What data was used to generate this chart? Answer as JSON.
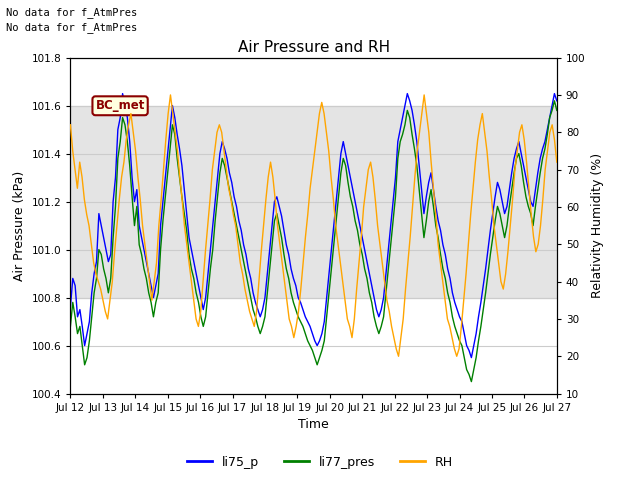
{
  "title": "Air Pressure and RH",
  "xlabel": "Time",
  "ylabel_left": "Air Pressure (kPa)",
  "ylabel_right": "Relativity Humidity (%)",
  "ylim_left": [
    100.4,
    101.8
  ],
  "ylim_right": [
    10,
    100
  ],
  "yticks_left": [
    100.4,
    100.6,
    100.8,
    101.0,
    101.2,
    101.4,
    101.6,
    101.8
  ],
  "yticks_right": [
    10,
    20,
    30,
    40,
    50,
    60,
    70,
    80,
    90,
    100
  ],
  "xtick_labels": [
    "Jul 12",
    "Jul 13",
    "Jul 14",
    "Jul 15",
    "Jul 16",
    "Jul 17",
    "Jul 18",
    "Jul 19",
    "Jul 20",
    "Jul 21",
    "Jul 22",
    "Jul 23",
    "Jul 24",
    "Jul 25",
    "Jul 26",
    "Jul 27"
  ],
  "annotation_text1": "No data for f_AtmPres",
  "annotation_text2": "No data for f_AtmPres",
  "bc_met_label": "BC_met",
  "legend_labels": [
    "li75_p",
    "li77_pres",
    "RH"
  ],
  "line_colors": [
    "blue",
    "green",
    "orange"
  ],
  "shade_ylim": [
    100.8,
    101.6
  ],
  "shade_color": "#d3d3d3",
  "background_color": "white",
  "title_fontsize": 11,
  "label_fontsize": 9,
  "tick_fontsize": 7.5,
  "legend_fontsize": 9,
  "li75_p": [
    100.76,
    100.88,
    100.85,
    100.72,
    100.75,
    100.68,
    100.6,
    100.65,
    100.7,
    100.82,
    100.9,
    100.95,
    101.15,
    101.1,
    101.05,
    101.0,
    100.95,
    100.98,
    101.2,
    101.3,
    101.5,
    101.55,
    101.65,
    101.6,
    101.55,
    101.45,
    101.3,
    101.2,
    101.25,
    101.1,
    101.05,
    101.0,
    100.95,
    100.9,
    100.85,
    100.8,
    100.85,
    100.9,
    101.1,
    101.2,
    101.3,
    101.4,
    101.5,
    101.6,
    101.55,
    101.48,
    101.42,
    101.35,
    101.25,
    101.15,
    101.05,
    101.0,
    100.95,
    100.9,
    100.85,
    100.8,
    100.75,
    100.8,
    100.9,
    101.0,
    101.1,
    101.2,
    101.3,
    101.4,
    101.45,
    101.42,
    101.38,
    101.32,
    101.28,
    101.22,
    101.18,
    101.12,
    101.08,
    101.02,
    100.98,
    100.92,
    100.88,
    100.82,
    100.78,
    100.75,
    100.72,
    100.75,
    100.8,
    100.9,
    101.0,
    101.1,
    101.2,
    101.22,
    101.18,
    101.14,
    101.08,
    101.02,
    100.98,
    100.92,
    100.88,
    100.85,
    100.8,
    100.78,
    100.75,
    100.72,
    100.7,
    100.68,
    100.65,
    100.62,
    100.6,
    100.62,
    100.65,
    100.7,
    100.8,
    100.9,
    101.0,
    101.1,
    101.2,
    101.3,
    101.4,
    101.45,
    101.4,
    101.35,
    101.3,
    101.25,
    101.2,
    101.15,
    101.1,
    101.05,
    101.0,
    100.95,
    100.9,
    100.85,
    100.8,
    100.75,
    100.72,
    100.75,
    100.8,
    100.9,
    101.0,
    101.1,
    101.2,
    101.3,
    101.45,
    101.5,
    101.55,
    101.6,
    101.65,
    101.62,
    101.58,
    101.52,
    101.45,
    101.35,
    101.25,
    101.15,
    101.22,
    101.28,
    101.32,
    101.25,
    101.18,
    101.12,
    101.08,
    101.02,
    100.98,
    100.92,
    100.88,
    100.82,
    100.78,
    100.75,
    100.72,
    100.7,
    100.65,
    100.6,
    100.58,
    100.55,
    100.6,
    100.65,
    100.72,
    100.78,
    100.85,
    100.92,
    101.0,
    101.08,
    101.15,
    101.22,
    101.28,
    101.25,
    101.2,
    101.15,
    101.18,
    101.25,
    101.32,
    101.38,
    101.42,
    101.45,
    101.4,
    101.35,
    101.3,
    101.25,
    101.2,
    101.18,
    101.25,
    101.32,
    101.38,
    101.42,
    101.45,
    101.5,
    101.55,
    101.6,
    101.65,
    101.62
  ],
  "li77_pres": [
    100.68,
    100.78,
    100.72,
    100.65,
    100.68,
    100.6,
    100.52,
    100.55,
    100.62,
    100.72,
    100.82,
    100.88,
    101.0,
    100.98,
    100.92,
    100.88,
    100.82,
    100.88,
    101.05,
    101.18,
    101.38,
    101.45,
    101.55,
    101.52,
    101.45,
    101.35,
    101.22,
    101.1,
    101.18,
    101.02,
    100.98,
    100.92,
    100.88,
    100.82,
    100.78,
    100.72,
    100.78,
    100.82,
    101.0,
    101.12,
    101.22,
    101.32,
    101.42,
    101.52,
    101.48,
    101.38,
    101.3,
    101.22,
    101.15,
    101.08,
    100.98,
    100.92,
    100.88,
    100.82,
    100.78,
    100.72,
    100.68,
    100.72,
    100.82,
    100.92,
    101.0,
    101.12,
    101.22,
    101.32,
    101.38,
    101.35,
    101.3,
    101.25,
    101.2,
    101.15,
    101.1,
    101.05,
    101.0,
    100.95,
    100.9,
    100.85,
    100.8,
    100.75,
    100.72,
    100.68,
    100.65,
    100.68,
    100.72,
    100.82,
    100.92,
    101.02,
    101.12,
    101.15,
    101.1,
    101.05,
    100.98,
    100.92,
    100.88,
    100.82,
    100.78,
    100.75,
    100.72,
    100.7,
    100.68,
    100.65,
    100.62,
    100.6,
    100.58,
    100.55,
    100.52,
    100.55,
    100.58,
    100.62,
    100.72,
    100.82,
    100.92,
    101.02,
    101.12,
    101.22,
    101.32,
    101.38,
    101.35,
    101.28,
    101.22,
    101.18,
    101.12,
    101.08,
    101.02,
    100.98,
    100.92,
    100.88,
    100.82,
    100.78,
    100.72,
    100.68,
    100.65,
    100.68,
    100.72,
    100.82,
    100.92,
    101.02,
    101.12,
    101.22,
    101.38,
    101.45,
    101.48,
    101.52,
    101.58,
    101.55,
    101.48,
    101.42,
    101.35,
    101.25,
    101.15,
    101.05,
    101.12,
    101.2,
    101.25,
    101.18,
    101.1,
    101.05,
    100.98,
    100.92,
    100.88,
    100.82,
    100.78,
    100.72,
    100.68,
    100.65,
    100.62,
    100.6,
    100.55,
    100.5,
    100.48,
    100.45,
    100.5,
    100.55,
    100.62,
    100.68,
    100.75,
    100.82,
    100.9,
    100.98,
    101.05,
    101.12,
    101.18,
    101.15,
    101.1,
    101.05,
    101.1,
    101.18,
    101.25,
    101.32,
    101.38,
    101.4,
    101.35,
    101.28,
    101.22,
    101.18,
    101.15,
    101.1,
    101.18,
    101.25,
    101.32,
    101.38,
    101.42,
    101.48,
    101.55,
    101.58,
    101.62,
    101.58
  ],
  "rh": [
    82,
    75,
    70,
    65,
    72,
    68,
    62,
    58,
    55,
    50,
    45,
    42,
    40,
    38,
    35,
    32,
    30,
    35,
    40,
    48,
    55,
    62,
    68,
    72,
    78,
    82,
    85,
    80,
    75,
    68,
    62,
    55,
    50,
    45,
    40,
    35,
    40,
    45,
    55,
    62,
    70,
    78,
    85,
    90,
    85,
    80,
    75,
    68,
    62,
    55,
    50,
    45,
    40,
    35,
    30,
    28,
    32,
    40,
    48,
    55,
    62,
    70,
    75,
    80,
    82,
    80,
    75,
    70,
    65,
    62,
    58,
    55,
    50,
    45,
    42,
    38,
    35,
    32,
    30,
    28,
    32,
    40,
    48,
    55,
    62,
    68,
    72,
    68,
    62,
    55,
    50,
    45,
    40,
    35,
    30,
    28,
    25,
    28,
    32,
    38,
    45,
    52,
    58,
    65,
    70,
    75,
    80,
    85,
    88,
    85,
    80,
    75,
    68,
    62,
    55,
    50,
    45,
    40,
    35,
    30,
    28,
    25,
    30,
    38,
    45,
    52,
    60,
    65,
    70,
    72,
    68,
    62,
    55,
    50,
    45,
    40,
    35,
    32,
    28,
    25,
    22,
    20,
    25,
    30,
    38,
    45,
    52,
    60,
    68,
    75,
    80,
    85,
    90,
    85,
    80,
    72,
    65,
    58,
    50,
    45,
    40,
    35,
    30,
    28,
    25,
    22,
    20,
    22,
    28,
    35,
    42,
    50,
    58,
    65,
    72,
    78,
    82,
    85,
    80,
    75,
    68,
    62,
    55,
    50,
    45,
    40,
    38,
    42,
    48,
    55,
    62,
    70,
    75,
    80,
    82,
    78,
    72,
    65,
    58,
    52,
    48,
    50,
    55,
    62,
    70,
    75,
    80,
    82,
    78,
    72
  ]
}
